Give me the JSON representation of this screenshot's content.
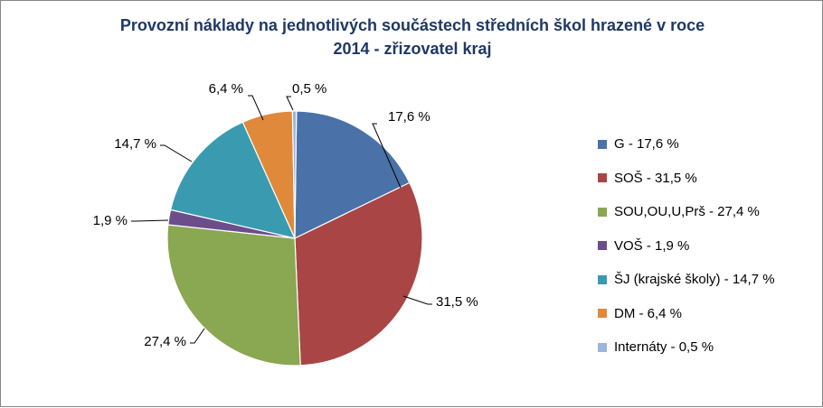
{
  "chart_data": {
    "type": "pie",
    "title_lines": [
      "Provozní náklady na jednotlivých součástech středních škol hrazené v roce",
      "2014 - zřizovatel kraj"
    ],
    "slices": [
      {
        "label": "G",
        "value": 17.6,
        "value_label": "17,6 %",
        "legend": "G - 17,6 %",
        "color": "#4a72a8"
      },
      {
        "label": "SOŠ",
        "value": 31.5,
        "value_label": "31,5 %",
        "legend": "SOŠ - 31,5 %",
        "color": "#a94544"
      },
      {
        "label": "SOU,OU,U,Prš",
        "value": 27.4,
        "value_label": "27,4 %",
        "legend": "SOU,OU,U,Prš - 27,4 %",
        "color": "#8aa751"
      },
      {
        "label": "VOŠ",
        "value": 1.9,
        "value_label": "1,9 %",
        "legend": "VOŠ - 1,9 %",
        "color": "#6b4d8c"
      },
      {
        "label": "ŠJ (krajské školy)",
        "value": 14.7,
        "value_label": "14,7 %",
        "legend": "ŠJ (krajské školy) - 14,7 %",
        "color": "#3a9bb0"
      },
      {
        "label": "DM",
        "value": 6.4,
        "value_label": "6,4 %",
        "legend": "DM - 6,4 %",
        "color": "#e0893a"
      },
      {
        "label": "Internáty",
        "value": 0.5,
        "value_label": "0,5 %",
        "legend": "Internáty - 0,5 %",
        "color": "#9db4df"
      }
    ],
    "legend_position": "right"
  }
}
